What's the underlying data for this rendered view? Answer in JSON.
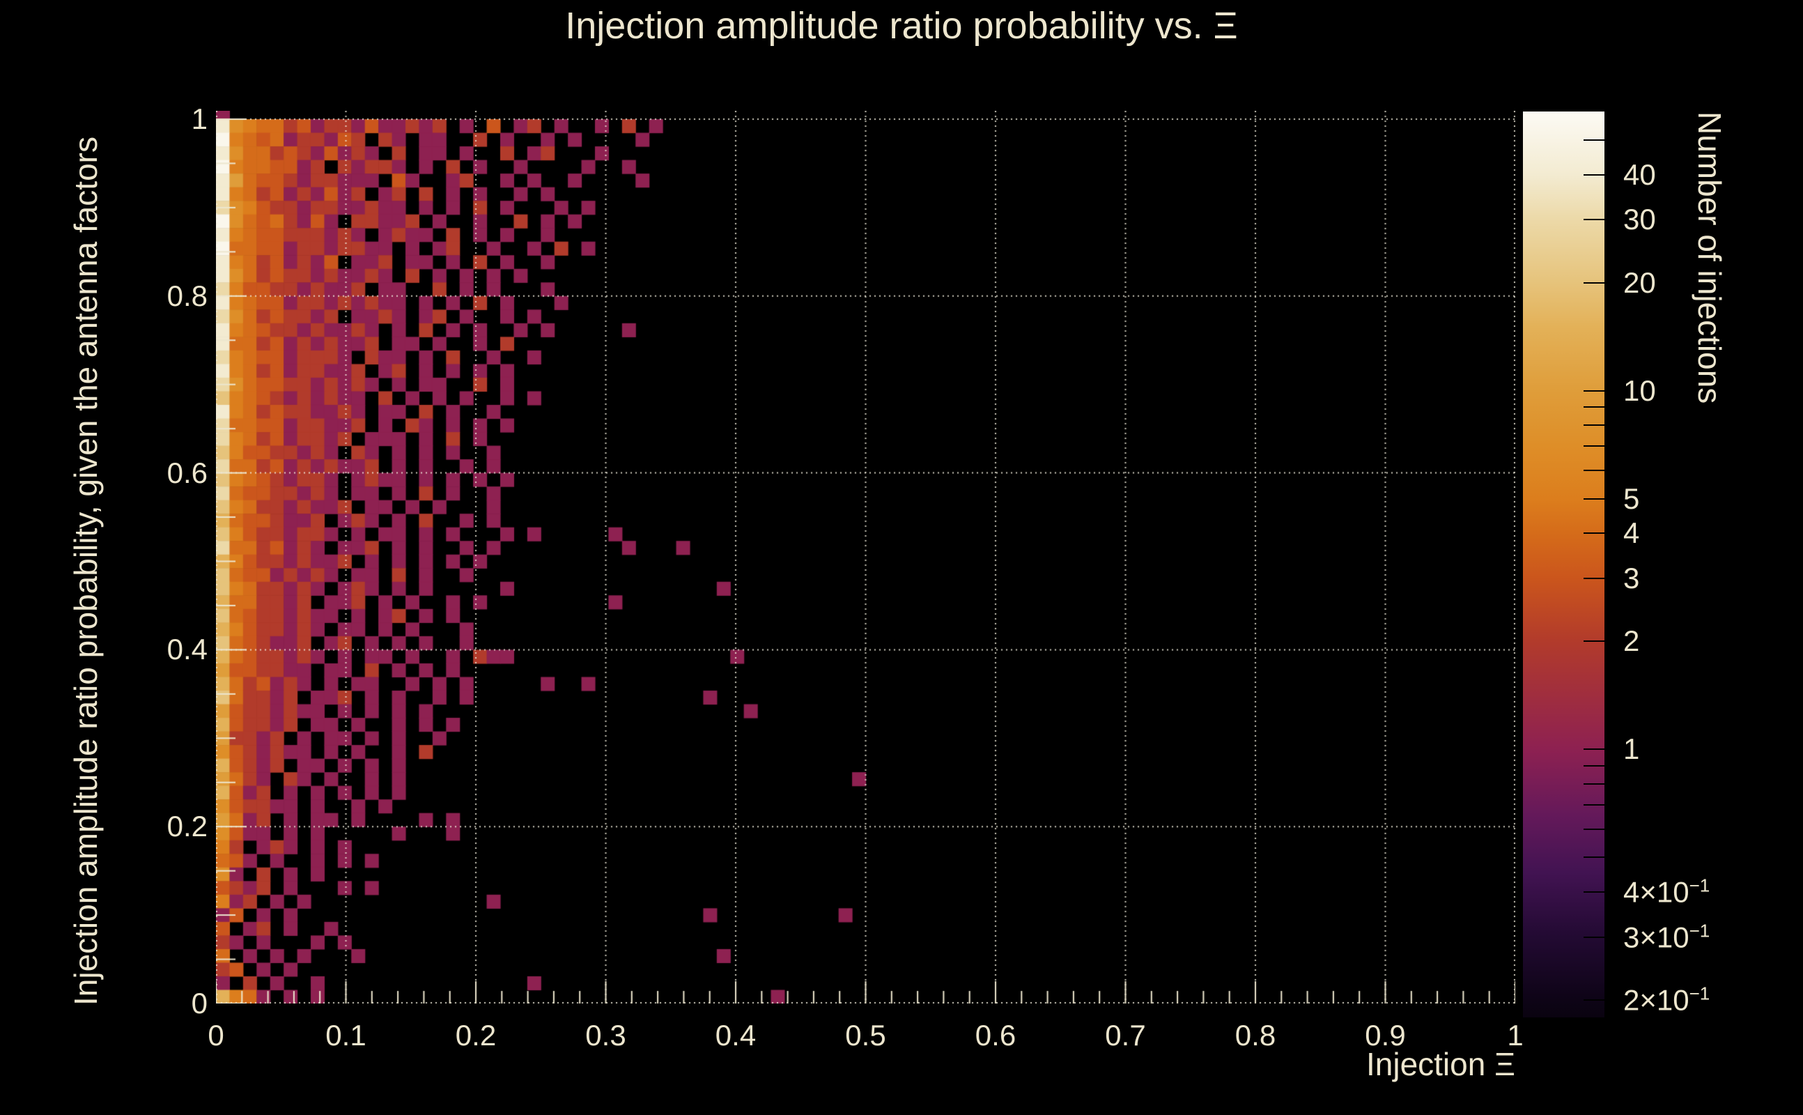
{
  "title": "Injection amplitude ratio probability vs.  Ξ",
  "background_color": "#000000",
  "text_color": "#EDE6CE",
  "chart_data": {
    "type": "heatmap",
    "title": "Injection amplitude ratio probability vs.  Ξ",
    "xlabel": "Injection Ξ",
    "ylabel": "Injection amplitude ratio probability, given the antenna factors",
    "zlabel": "Number of injections",
    "xlim": [
      0,
      1
    ],
    "ylim": [
      0,
      1.01
    ],
    "zscale": "log",
    "zlim": [
      0.179,
      60
    ],
    "grid": "dotted",
    "grid_color": "rgba(243,238,222,0.85)",
    "tick_color": "#EDE6CE",
    "x_ticks": {
      "minor_step": 0.02,
      "labels": [
        {
          "v": 0.0,
          "t": "0"
        },
        {
          "v": 0.1,
          "t": "0.1"
        },
        {
          "v": 0.2,
          "t": "0.2"
        },
        {
          "v": 0.3,
          "t": "0.3"
        },
        {
          "v": 0.4,
          "t": "0.4"
        },
        {
          "v": 0.5,
          "t": "0.5"
        },
        {
          "v": 0.6,
          "t": "0.6"
        },
        {
          "v": 0.7,
          "t": "0.7"
        },
        {
          "v": 0.8,
          "t": "0.8"
        },
        {
          "v": 0.9,
          "t": "0.9"
        },
        {
          "v": 1.0,
          "t": "1"
        }
      ]
    },
    "y_ticks": {
      "minor_step": 0.05,
      "labels": [
        {
          "v": 0.0,
          "t": "0"
        },
        {
          "v": 0.2,
          "t": "0.2"
        },
        {
          "v": 0.4,
          "t": "0.4"
        },
        {
          "v": 0.6,
          "t": "0.6"
        },
        {
          "v": 0.8,
          "t": "0.8"
        },
        {
          "v": 1.0,
          "t": "1"
        }
      ]
    },
    "x_bins": 96,
    "y_bins": 66,
    "note": "Bin counts estimated from pixel colors; row 0 is the thin strip above y=1, rows are top-to-bottom, chars map via intensity_key; trailing '.' (empty) omitted.",
    "intensity_key": {
      ".": 0,
      "1": 1,
      "2": 2,
      "3": 3,
      "4": 4,
      "5": 5,
      "6": 7,
      "7": 10,
      "8": 15,
      "9": 20,
      "a": 30,
      "b": 40,
      "c": 50
    },
    "palette": {
      "1": "#8E2151",
      "2": "#B23B2B",
      "3": "#CB561C",
      "4": "#D56C1A",
      "5": "#DC7E1D",
      "6": "#DE8E28",
      "7": "#DF9D3A",
      "8": "#E3B158",
      "9": "#E6C37B",
      "a": "#ECD9A8",
      "b": "#F3EBD1",
      "c": "#FAF7EC"
    },
    "rows": [
      "1",
      "b6544231221311212.1.3.12.1..1.2.1",
      "c5434122132.21.11..2.1..1.1....1",
      "b64423213121.2.11.1..2.12...1",
      "c5443312.21221.1.2.1..1....1..1",
      "b74332122111.31..12..1.1..1....1",
      "b5423121312.12.2.1.1..1.1",
      "a6532212211211.1.1.2.1...1.1",
      "c64342131.22112.1..1..2.1.1",
      "b5433222121.1211.2.1.1..1",
      "c443312212211.1.12..1..1.2.1",
      "b54231213.112.11.1.2.1..1",
      "b642322121121.2.1.1.1.1",
      "a5332212112.11..2.1.1...1",
      "b5433122121211.1.1.2.1...1",
      "a64232212.1121.12.1..1.1",
      "b54322121121.1.2.1.1..1.1.....1",
      "b44231212112.11.1..1.2",
      "a543312221.211.1.2..1..1",
      "b5423122112.12.1.1.1.1",
      "a64332212121.1.11..2.1",
      "95432121211.2.1.1.1..1.1",
      "b5423221121.11.2.1..1",
      "a4433122112.1.21.1.1.1",
      "a542312212.111.1.2.1",
      "953322121.21.1.1.1..1",
      "a44231212112.1.1..1.1",
      "954321221.1211.1.1.1.1",
      "a43322121.11.1.2.1..1",
      "9542212112.11.1.1...1",
      "84332112.121.1.2..1.1",
      "953221221.1.11.1.1...1.1.....1",
      "a4423121.112.1.1..1.1.........1...1",
      "8532212112.1.1.1.1.1",
      "943312121.11.2.1..1",
      "95422121.121.1.1.....1...............1",
      "8442212.112.1.1..1.1.........1",
      "943221211.1.12.1.1",
      "85322121.11.1.1...1",
      "9432112.12.1.1.1..1",
      "84322121.1.11.1..1.211................1",
      "7332211.11.2.1.1.1",
      "8423121.1.11..1.1.1.....1..1",
      "942212.112.1.1..1.1.................1",
      "73221211.1.1.1.1.......................1",
      "832212.11.1..1.1.1",
      "72212.1.11.1.1..1",
      "6321211.1.1..1.2",
      "83212.11.1.1.1",
      "7421.21.1..1.1.................................1",
      "8312.1.1.1.1.1",
      "632211.1..1.1",
      "7412.1.11.1....1.1",
      "6311.1.1.....1...1",
      "52.121.1.1",
      "431.1..1.1.1",
      "61.2.1.1",
      "3212.1...1.1",
      "512.1.1.............1",
      "13.1.1..............................1.........1",
      "3.12.1..1",
      "21.1...1.1",
      "4.1.1.1...1..........................1",
      "23.1.1",
      "1.2.1..1...............1",
      "8541.1.1.................................1"
    ],
    "colorbar": {
      "title": "Number of injections",
      "gradient": [
        {
          "p": 0.0,
          "c": "#FCFAF4"
        },
        {
          "p": 0.07,
          "c": "#F3EBD1"
        },
        {
          "p": 0.119,
          "c": "#ECD9A8"
        },
        {
          "p": 0.189,
          "c": "#E6C37B"
        },
        {
          "p": 0.238,
          "c": "#E3B158"
        },
        {
          "p": 0.308,
          "c": "#DF9D3A"
        },
        {
          "p": 0.369,
          "c": "#DE8E28"
        },
        {
          "p": 0.427,
          "c": "#DC7E1D"
        },
        {
          "p": 0.465,
          "c": "#D56C1A"
        },
        {
          "p": 0.514,
          "c": "#CB561C"
        },
        {
          "p": 0.584,
          "c": "#B23B2B"
        },
        {
          "p": 0.703,
          "c": "#8E2151"
        },
        {
          "p": 0.777,
          "c": "#64195A"
        },
        {
          "p": 0.84,
          "c": "#421352"
        },
        {
          "p": 0.909,
          "c": "#230A33"
        },
        {
          "p": 0.979,
          "c": "#0E0417"
        },
        {
          "p": 1.0,
          "c": "#0A0310"
        }
      ],
      "ticks": [
        {
          "v": 50,
          "t": "",
          "e": ""
        },
        {
          "v": 40,
          "t": "40",
          "e": ""
        },
        {
          "v": 30,
          "t": "30",
          "e": ""
        },
        {
          "v": 20,
          "t": "20",
          "e": ""
        },
        {
          "v": 10,
          "t": "10",
          "e": ""
        },
        {
          "v": 9,
          "t": "",
          "e": ""
        },
        {
          "v": 8,
          "t": "",
          "e": ""
        },
        {
          "v": 7,
          "t": "",
          "e": ""
        },
        {
          "v": 6,
          "t": "",
          "e": ""
        },
        {
          "v": 5,
          "t": "5",
          "e": ""
        },
        {
          "v": 4,
          "t": "4",
          "e": ""
        },
        {
          "v": 3,
          "t": "3",
          "e": ""
        },
        {
          "v": 2,
          "t": "2",
          "e": ""
        },
        {
          "v": 1,
          "t": "1",
          "e": ""
        },
        {
          "v": 0.9,
          "t": "",
          "e": ""
        },
        {
          "v": 0.8,
          "t": "",
          "e": ""
        },
        {
          "v": 0.7,
          "t": "",
          "e": ""
        },
        {
          "v": 0.6,
          "t": "",
          "e": ""
        },
        {
          "v": 0.5,
          "t": "",
          "e": ""
        },
        {
          "v": 0.4,
          "t": "4×10",
          "e": "−1"
        },
        {
          "v": 0.3,
          "t": "3×10",
          "e": "−1"
        },
        {
          "v": 0.2,
          "t": "2×10",
          "e": "−1"
        }
      ]
    }
  }
}
